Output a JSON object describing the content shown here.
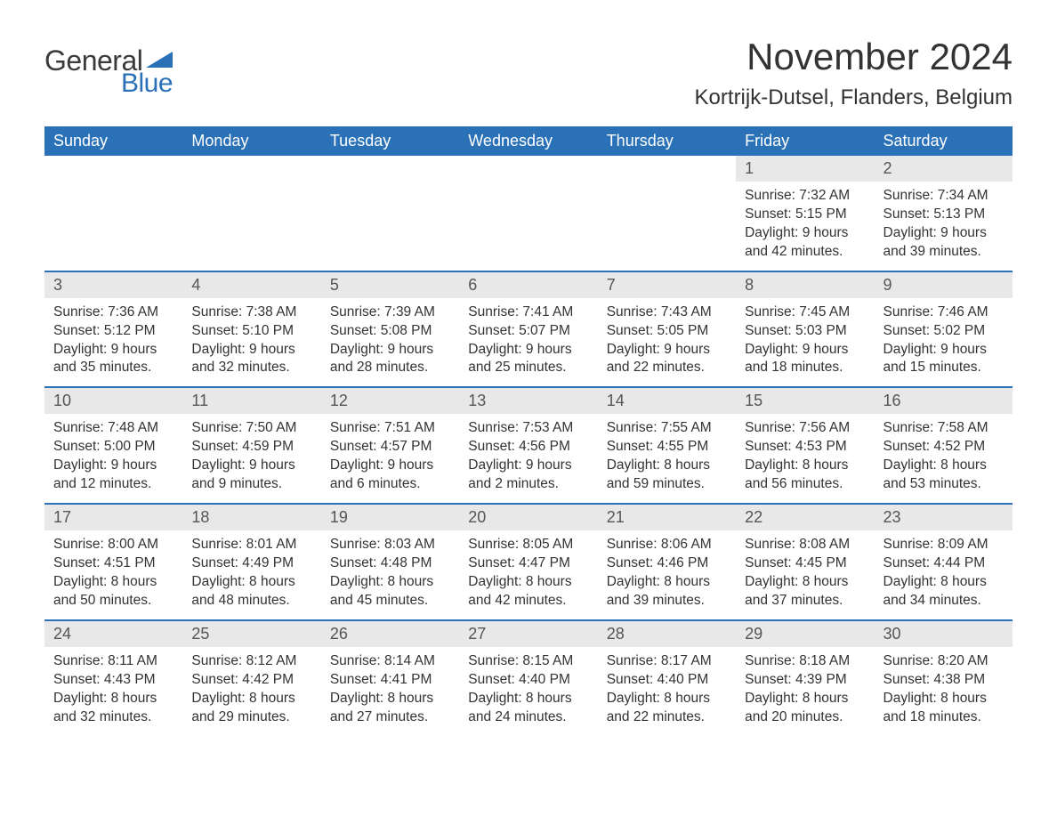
{
  "brand": {
    "general": "General",
    "blue": "Blue",
    "accent_color": "#2a71b8"
  },
  "title": "November 2024",
  "location": "Kortrijk-Dutsel, Flanders, Belgium",
  "colors": {
    "header_bg": "#2a71b8",
    "header_text": "#ffffff",
    "daynum_bg": "#e8e8e8",
    "body_text": "#333333",
    "page_bg": "#ffffff"
  },
  "labels": {
    "sunrise": "Sunrise:",
    "sunset": "Sunset:",
    "daylight": "Daylight:"
  },
  "day_headers": [
    "Sunday",
    "Monday",
    "Tuesday",
    "Wednesday",
    "Thursday",
    "Friday",
    "Saturday"
  ],
  "weeks": [
    [
      null,
      null,
      null,
      null,
      null,
      {
        "n": "1",
        "sunrise": "7:32 AM",
        "sunset": "5:15 PM",
        "daylight": "9 hours and 42 minutes."
      },
      {
        "n": "2",
        "sunrise": "7:34 AM",
        "sunset": "5:13 PM",
        "daylight": "9 hours and 39 minutes."
      }
    ],
    [
      {
        "n": "3",
        "sunrise": "7:36 AM",
        "sunset": "5:12 PM",
        "daylight": "9 hours and 35 minutes."
      },
      {
        "n": "4",
        "sunrise": "7:38 AM",
        "sunset": "5:10 PM",
        "daylight": "9 hours and 32 minutes."
      },
      {
        "n": "5",
        "sunrise": "7:39 AM",
        "sunset": "5:08 PM",
        "daylight": "9 hours and 28 minutes."
      },
      {
        "n": "6",
        "sunrise": "7:41 AM",
        "sunset": "5:07 PM",
        "daylight": "9 hours and 25 minutes."
      },
      {
        "n": "7",
        "sunrise": "7:43 AM",
        "sunset": "5:05 PM",
        "daylight": "9 hours and 22 minutes."
      },
      {
        "n": "8",
        "sunrise": "7:45 AM",
        "sunset": "5:03 PM",
        "daylight": "9 hours and 18 minutes."
      },
      {
        "n": "9",
        "sunrise": "7:46 AM",
        "sunset": "5:02 PM",
        "daylight": "9 hours and 15 minutes."
      }
    ],
    [
      {
        "n": "10",
        "sunrise": "7:48 AM",
        "sunset": "5:00 PM",
        "daylight": "9 hours and 12 minutes."
      },
      {
        "n": "11",
        "sunrise": "7:50 AM",
        "sunset": "4:59 PM",
        "daylight": "9 hours and 9 minutes."
      },
      {
        "n": "12",
        "sunrise": "7:51 AM",
        "sunset": "4:57 PM",
        "daylight": "9 hours and 6 minutes."
      },
      {
        "n": "13",
        "sunrise": "7:53 AM",
        "sunset": "4:56 PM",
        "daylight": "9 hours and 2 minutes."
      },
      {
        "n": "14",
        "sunrise": "7:55 AM",
        "sunset": "4:55 PM",
        "daylight": "8 hours and 59 minutes."
      },
      {
        "n": "15",
        "sunrise": "7:56 AM",
        "sunset": "4:53 PM",
        "daylight": "8 hours and 56 minutes."
      },
      {
        "n": "16",
        "sunrise": "7:58 AM",
        "sunset": "4:52 PM",
        "daylight": "8 hours and 53 minutes."
      }
    ],
    [
      {
        "n": "17",
        "sunrise": "8:00 AM",
        "sunset": "4:51 PM",
        "daylight": "8 hours and 50 minutes."
      },
      {
        "n": "18",
        "sunrise": "8:01 AM",
        "sunset": "4:49 PM",
        "daylight": "8 hours and 48 minutes."
      },
      {
        "n": "19",
        "sunrise": "8:03 AM",
        "sunset": "4:48 PM",
        "daylight": "8 hours and 45 minutes."
      },
      {
        "n": "20",
        "sunrise": "8:05 AM",
        "sunset": "4:47 PM",
        "daylight": "8 hours and 42 minutes."
      },
      {
        "n": "21",
        "sunrise": "8:06 AM",
        "sunset": "4:46 PM",
        "daylight": "8 hours and 39 minutes."
      },
      {
        "n": "22",
        "sunrise": "8:08 AM",
        "sunset": "4:45 PM",
        "daylight": "8 hours and 37 minutes."
      },
      {
        "n": "23",
        "sunrise": "8:09 AM",
        "sunset": "4:44 PM",
        "daylight": "8 hours and 34 minutes."
      }
    ],
    [
      {
        "n": "24",
        "sunrise": "8:11 AM",
        "sunset": "4:43 PM",
        "daylight": "8 hours and 32 minutes."
      },
      {
        "n": "25",
        "sunrise": "8:12 AM",
        "sunset": "4:42 PM",
        "daylight": "8 hours and 29 minutes."
      },
      {
        "n": "26",
        "sunrise": "8:14 AM",
        "sunset": "4:41 PM",
        "daylight": "8 hours and 27 minutes."
      },
      {
        "n": "27",
        "sunrise": "8:15 AM",
        "sunset": "4:40 PM",
        "daylight": "8 hours and 24 minutes."
      },
      {
        "n": "28",
        "sunrise": "8:17 AM",
        "sunset": "4:40 PM",
        "daylight": "8 hours and 22 minutes."
      },
      {
        "n": "29",
        "sunrise": "8:18 AM",
        "sunset": "4:39 PM",
        "daylight": "8 hours and 20 minutes."
      },
      {
        "n": "30",
        "sunrise": "8:20 AM",
        "sunset": "4:38 PM",
        "daylight": "8 hours and 18 minutes."
      }
    ]
  ]
}
